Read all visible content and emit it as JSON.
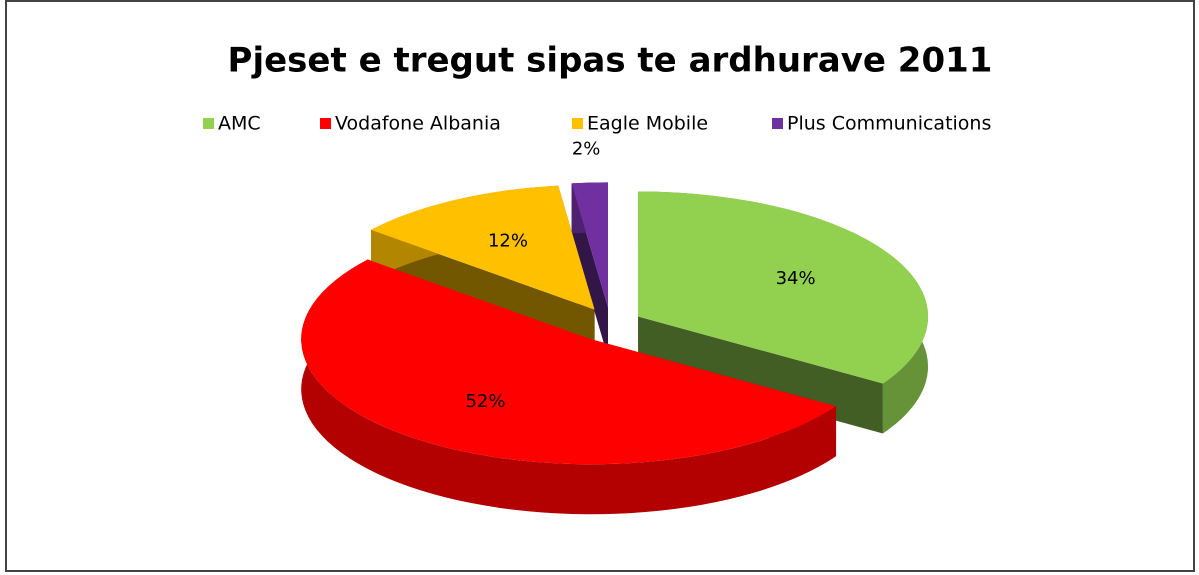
{
  "chart_data": {
    "type": "pie3d",
    "title": "Pjeset e tregut sipas te ardhurave 2011",
    "categories": [
      "AMC",
      "Vodafone Albania",
      "Eagle Mobile",
      "Plus Communications"
    ],
    "values": [
      34,
      52,
      12,
      2
    ],
    "value_labels": [
      "34%",
      "52%",
      "12%",
      "2%"
    ],
    "colors": [
      "#92d050",
      "#ff0000",
      "#ffc000",
      "#7030a0"
    ],
    "legend": "top"
  }
}
